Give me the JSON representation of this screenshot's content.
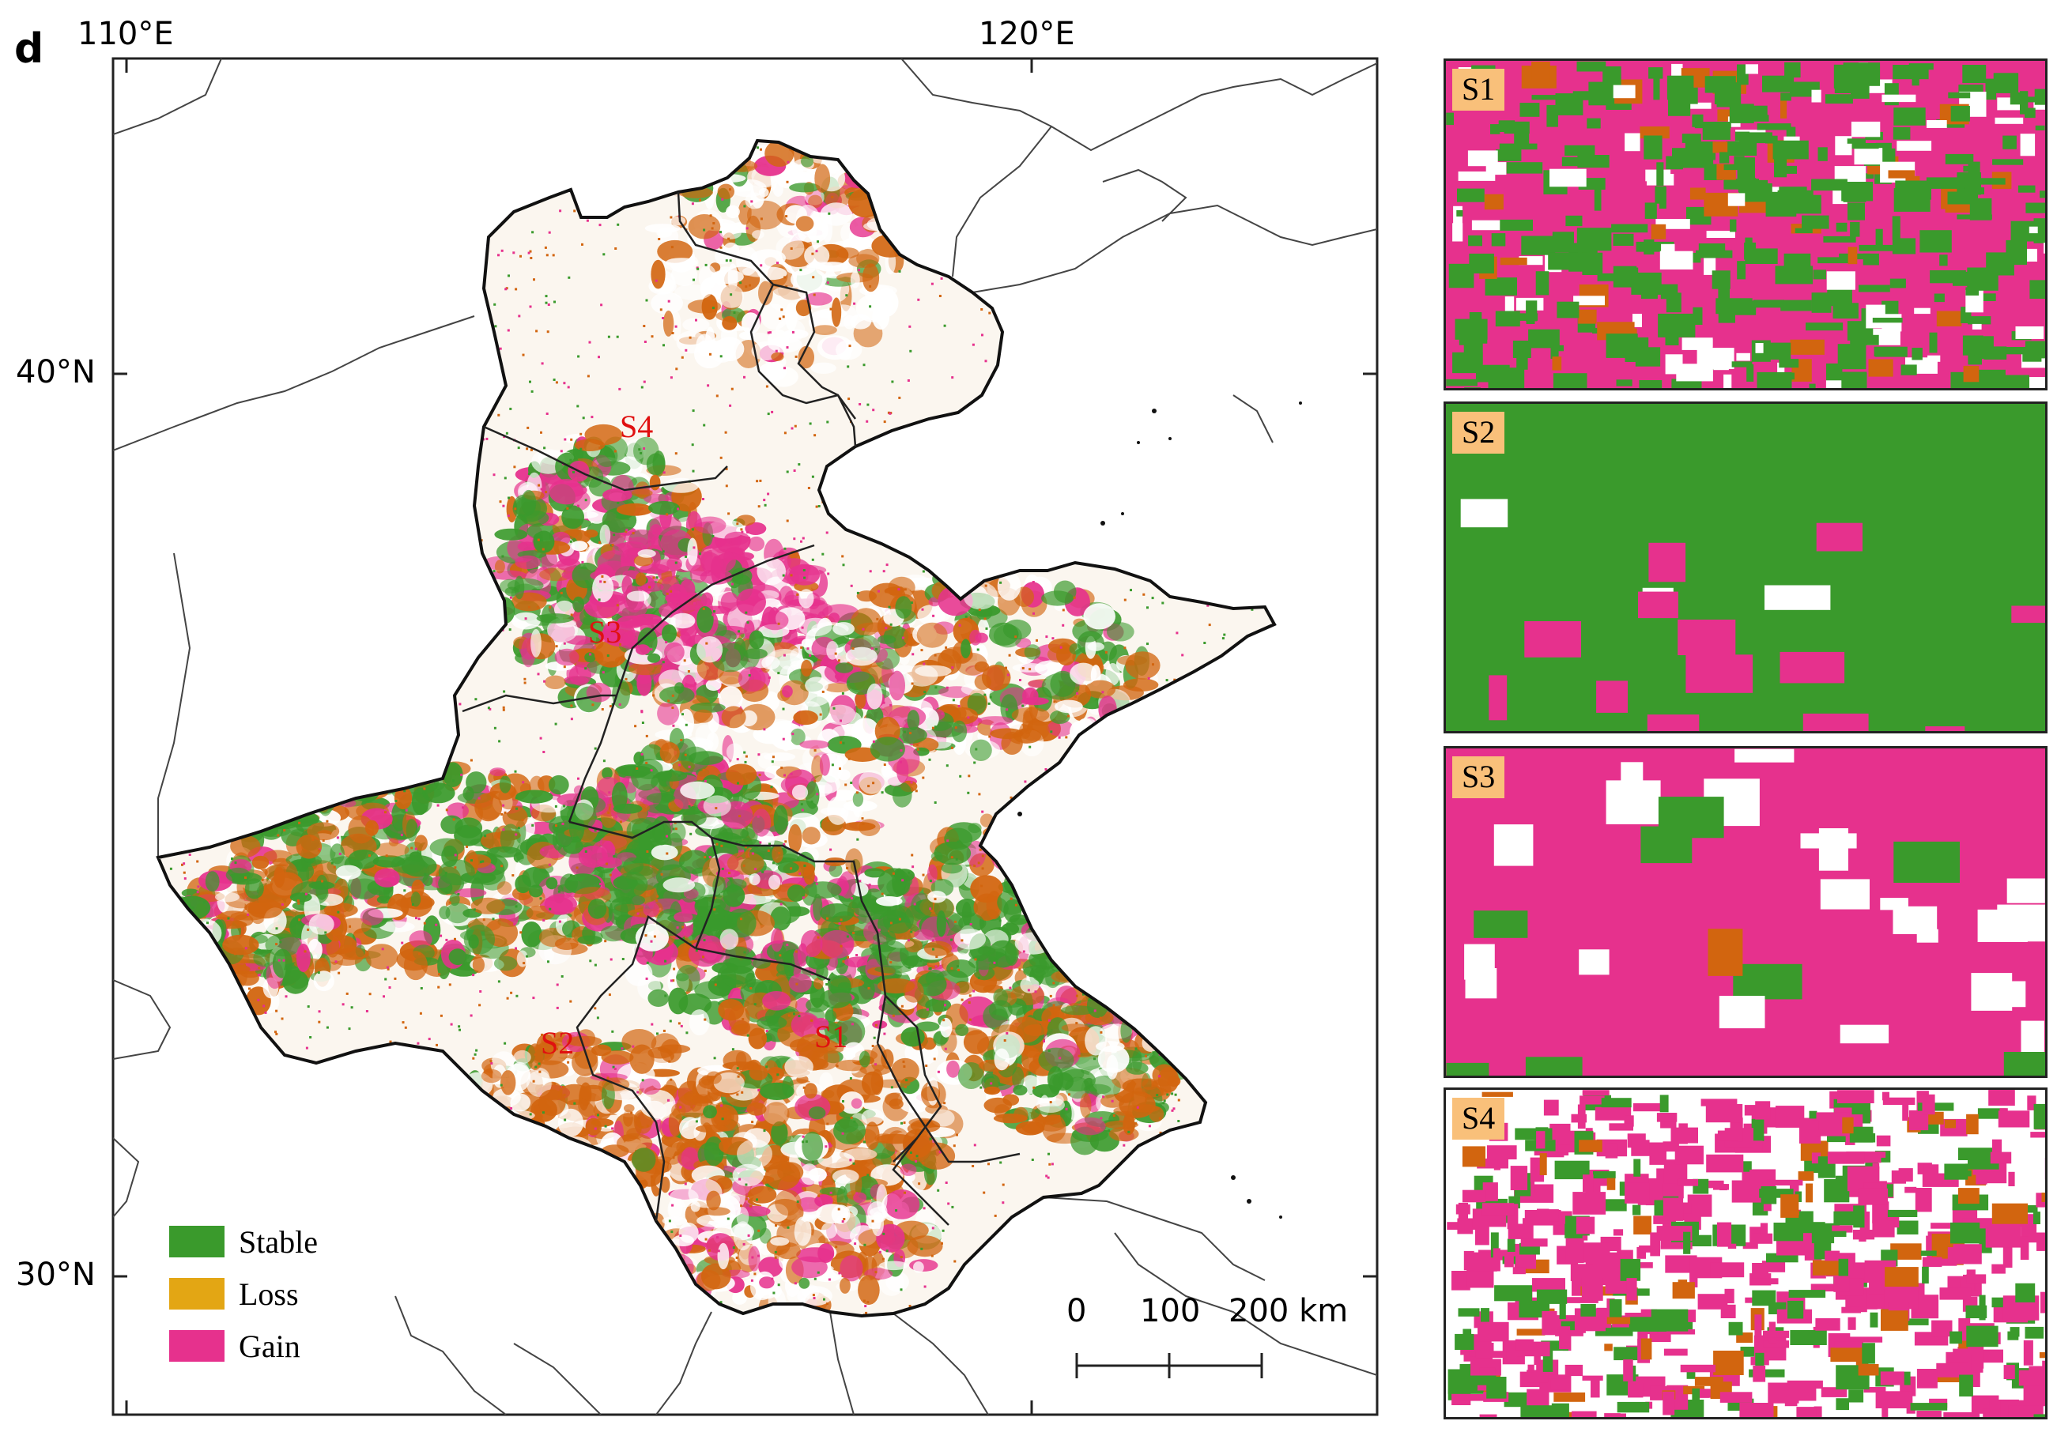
{
  "panel_letter": "d",
  "axes": {
    "lon_labels": [
      "110°E",
      "120°E"
    ],
    "lat_labels": [
      "40°N",
      "30°N"
    ]
  },
  "sites": [
    {
      "id": "S1",
      "label": "S1"
    },
    {
      "id": "S2",
      "label": "S2"
    },
    {
      "id": "S3",
      "label": "S3"
    },
    {
      "id": "S4",
      "label": "S4"
    }
  ],
  "legend": [
    {
      "label": "Stable",
      "color": "#3a9a2c"
    },
    {
      "label": "Loss",
      "color": "#e3a614"
    },
    {
      "label": "Gain",
      "color": "#e6318d"
    }
  ],
  "scale_bar": {
    "ticks": [
      "0",
      "100",
      "200 km"
    ]
  },
  "insets": [
    {
      "label": "S1",
      "dominant": "gain"
    },
    {
      "label": "S2",
      "dominant": "stable"
    },
    {
      "label": "S3",
      "dominant": "gain"
    },
    {
      "label": "S4",
      "dominant": "mixed"
    }
  ],
  "colors": {
    "stable": "#3a9a2c",
    "loss": "#e3a614",
    "loss_dark": "#d2650f",
    "gain": "#e6318d",
    "boundary": "#111111",
    "province_line": "#444444"
  }
}
